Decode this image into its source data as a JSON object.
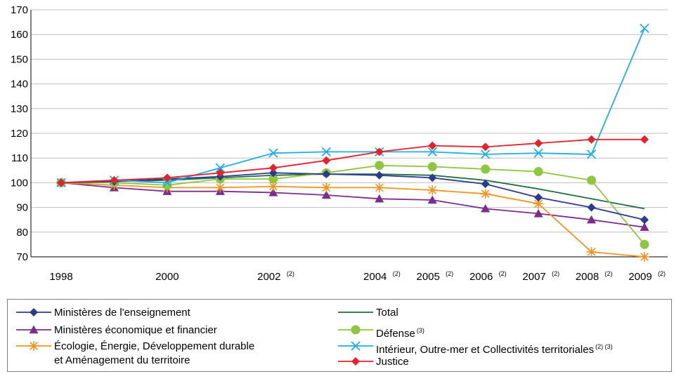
{
  "chart_data": {
    "type": "line",
    "title": "",
    "xlabel": "",
    "ylabel": "",
    "ylim": [
      70,
      170
    ],
    "yticks": [
      70,
      80,
      90,
      100,
      110,
      120,
      130,
      140,
      150,
      160,
      170
    ],
    "x": [
      "1998",
      "1999",
      "2000",
      "2001",
      "2002",
      "2003",
      "2004",
      "2005",
      "2006",
      "2007",
      "2008",
      "2009"
    ],
    "x_tick_labels": [
      {
        "label": "1998",
        "note": ""
      },
      {
        "label": "",
        "note": ""
      },
      {
        "label": "2000",
        "note": ""
      },
      {
        "label": "",
        "note": ""
      },
      {
        "label": "2002",
        "note": "(2)"
      },
      {
        "label": "",
        "note": ""
      },
      {
        "label": "2004",
        "note": "(2)"
      },
      {
        "label": "2005",
        "note": "(2)"
      },
      {
        "label": "2006",
        "note": "(2)"
      },
      {
        "label": "2007",
        "note": "(2)"
      },
      {
        "label": "2008",
        "note": "(2)"
      },
      {
        "label": "2009",
        "note": "(2)"
      }
    ],
    "grid": "horizontal",
    "legend_position": "bottom",
    "series": [
      {
        "name": "Ministères de l'enseignement",
        "note": "",
        "color": "#2b3a8c",
        "marker": "diamond",
        "values": [
          100,
          100.5,
          101.5,
          102.5,
          104,
          103.5,
          103,
          102,
          99.5,
          94,
          90,
          85
        ]
      },
      {
        "name": "Ministères économique et financier",
        "note": "",
        "color": "#7b2c8c",
        "marker": "triangle",
        "values": [
          100,
          98,
          96.5,
          96.5,
          96,
          95,
          93.5,
          93,
          89.5,
          87.5,
          85,
          82
        ]
      },
      {
        "name": "Écologie, Énergie, Développement durable",
        "name_line2": "et Aménagement du territoire",
        "note": "",
        "color": "#f0951c",
        "marker": "asterisk",
        "values": [
          100,
          99,
          98,
          98,
          98.5,
          98,
          98,
          97,
          95.5,
          91.5,
          72,
          70
        ]
      },
      {
        "name": "Total",
        "note": "",
        "color": "#1f6d3c",
        "marker": "none",
        "values": [
          100,
          100.5,
          101,
          102,
          103,
          103.5,
          103.5,
          103,
          101,
          97.5,
          93.5,
          89.5
        ]
      },
      {
        "name": "Défense",
        "note": "(3)",
        "color": "#8dc63f",
        "marker": "circle",
        "values": [
          100,
          100,
          99,
          101.5,
          101.5,
          104,
          107,
          106.5,
          105.5,
          104.5,
          101,
          75
        ]
      },
      {
        "name": "Intérieur, Outre-mer et Collectivités territoriales",
        "note": "(2) (3)",
        "color": "#1faee8",
        "marker": "x",
        "values": [
          100,
          101,
          100,
          106,
          112,
          112.5,
          112.5,
          112.5,
          111.5,
          112,
          111.5,
          162.5
        ]
      },
      {
        "name": "Justice",
        "note": "",
        "color": "#e8202a",
        "marker": "diamond",
        "values": [
          100,
          101,
          102,
          104,
          106,
          109,
          112.5,
          115,
          114.5,
          116,
          117.5,
          117.5
        ]
      }
    ]
  }
}
